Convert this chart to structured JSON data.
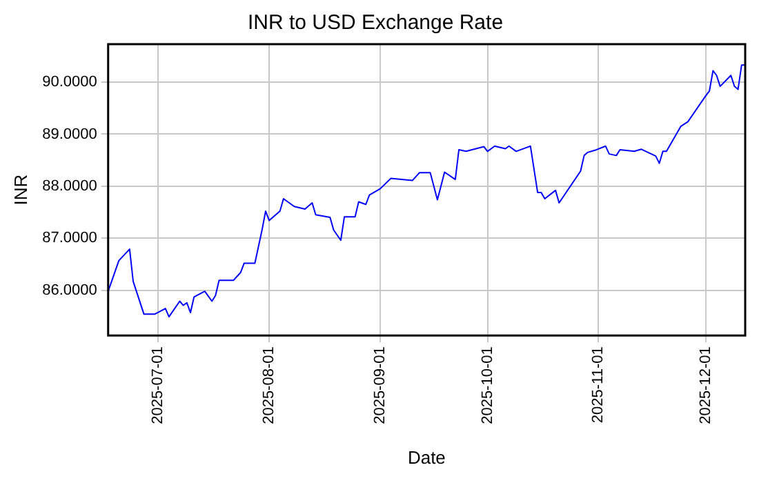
{
  "chart_data": {
    "type": "line",
    "title": "INR to USD Exchange Rate",
    "xlabel": "Date",
    "ylabel": "INR",
    "x": [
      "2025-06-17",
      "2025-06-20",
      "2025-06-23",
      "2025-06-24",
      "2025-06-27",
      "2025-06-30",
      "2025-07-03",
      "2025-07-04",
      "2025-07-07",
      "2025-07-08",
      "2025-07-09",
      "2025-07-10",
      "2025-07-11",
      "2025-07-14",
      "2025-07-16",
      "2025-07-17",
      "2025-07-18",
      "2025-07-22",
      "2025-07-24",
      "2025-07-25",
      "2025-07-28",
      "2025-07-30",
      "2025-07-31",
      "2025-08-01",
      "2025-08-04",
      "2025-08-05",
      "2025-08-08",
      "2025-08-11",
      "2025-08-13",
      "2025-08-14",
      "2025-08-18",
      "2025-08-19",
      "2025-08-21",
      "2025-08-22",
      "2025-08-25",
      "2025-08-26",
      "2025-08-28",
      "2025-08-29",
      "2025-09-01",
      "2025-09-04",
      "2025-09-10",
      "2025-09-12",
      "2025-09-15",
      "2025-09-17",
      "2025-09-19",
      "2025-09-22",
      "2025-09-23",
      "2025-09-25",
      "2025-09-30",
      "2025-10-01",
      "2025-10-03",
      "2025-10-06",
      "2025-10-07",
      "2025-10-09",
      "2025-10-13",
      "2025-10-15",
      "2025-10-16",
      "2025-10-17",
      "2025-10-20",
      "2025-10-21",
      "2025-10-27",
      "2025-10-28",
      "2025-10-29",
      "2025-10-31",
      "2025-11-03",
      "2025-11-04",
      "2025-11-06",
      "2025-11-07",
      "2025-11-11",
      "2025-11-13",
      "2025-11-17",
      "2025-11-18",
      "2025-11-19",
      "2025-11-20",
      "2025-11-24",
      "2025-11-26",
      "2025-12-01",
      "2025-12-02",
      "2025-12-03",
      "2025-12-04",
      "2025-12-05",
      "2025-12-08",
      "2025-12-09",
      "2025-12-10",
      "2025-12-11",
      "2025-12-12"
    ],
    "series": [
      {
        "color": "#0000ff",
        "values": [
          85.98,
          86.57,
          86.79,
          86.17,
          85.54,
          85.54,
          85.65,
          85.49,
          85.79,
          85.71,
          85.76,
          85.57,
          85.87,
          85.98,
          85.79,
          85.9,
          86.19,
          86.19,
          86.34,
          86.52,
          86.52,
          87.16,
          87.52,
          87.34,
          87.52,
          87.76,
          87.61,
          87.56,
          87.68,
          87.45,
          87.4,
          87.16,
          86.96,
          87.41,
          87.41,
          87.7,
          87.65,
          87.83,
          87.95,
          88.15,
          88.11,
          88.26,
          88.26,
          87.74,
          88.27,
          88.13,
          88.7,
          88.67,
          88.76,
          88.67,
          88.77,
          88.72,
          88.77,
          88.67,
          88.77,
          87.88,
          87.88,
          87.76,
          87.92,
          87.68,
          88.29,
          88.59,
          88.65,
          88.69,
          88.77,
          88.62,
          88.59,
          88.7,
          88.67,
          88.71,
          88.58,
          88.44,
          88.67,
          88.67,
          89.15,
          89.24,
          89.74,
          89.83,
          90.22,
          90.13,
          89.92,
          90.13,
          89.92,
          89.86,
          90.33,
          90.33
        ]
      }
    ],
    "xlim": [
      "2025-06-17",
      "2025-12-12"
    ],
    "xticks": [
      "2025-07-01",
      "2025-08-01",
      "2025-09-01",
      "2025-10-01",
      "2025-11-01",
      "2025-12-01"
    ],
    "ylim": [
      85.13,
      90.73
    ],
    "yticks": [
      {
        "value": 86,
        "label": "86.0000"
      },
      {
        "value": 87,
        "label": "87.0000"
      },
      {
        "value": 88,
        "label": "88.0000"
      },
      {
        "value": 89,
        "label": "89.0000"
      },
      {
        "value": 90,
        "label": "90.0000"
      }
    ],
    "grid": true,
    "legend": false,
    "marker": "none",
    "line_style": "solid"
  }
}
